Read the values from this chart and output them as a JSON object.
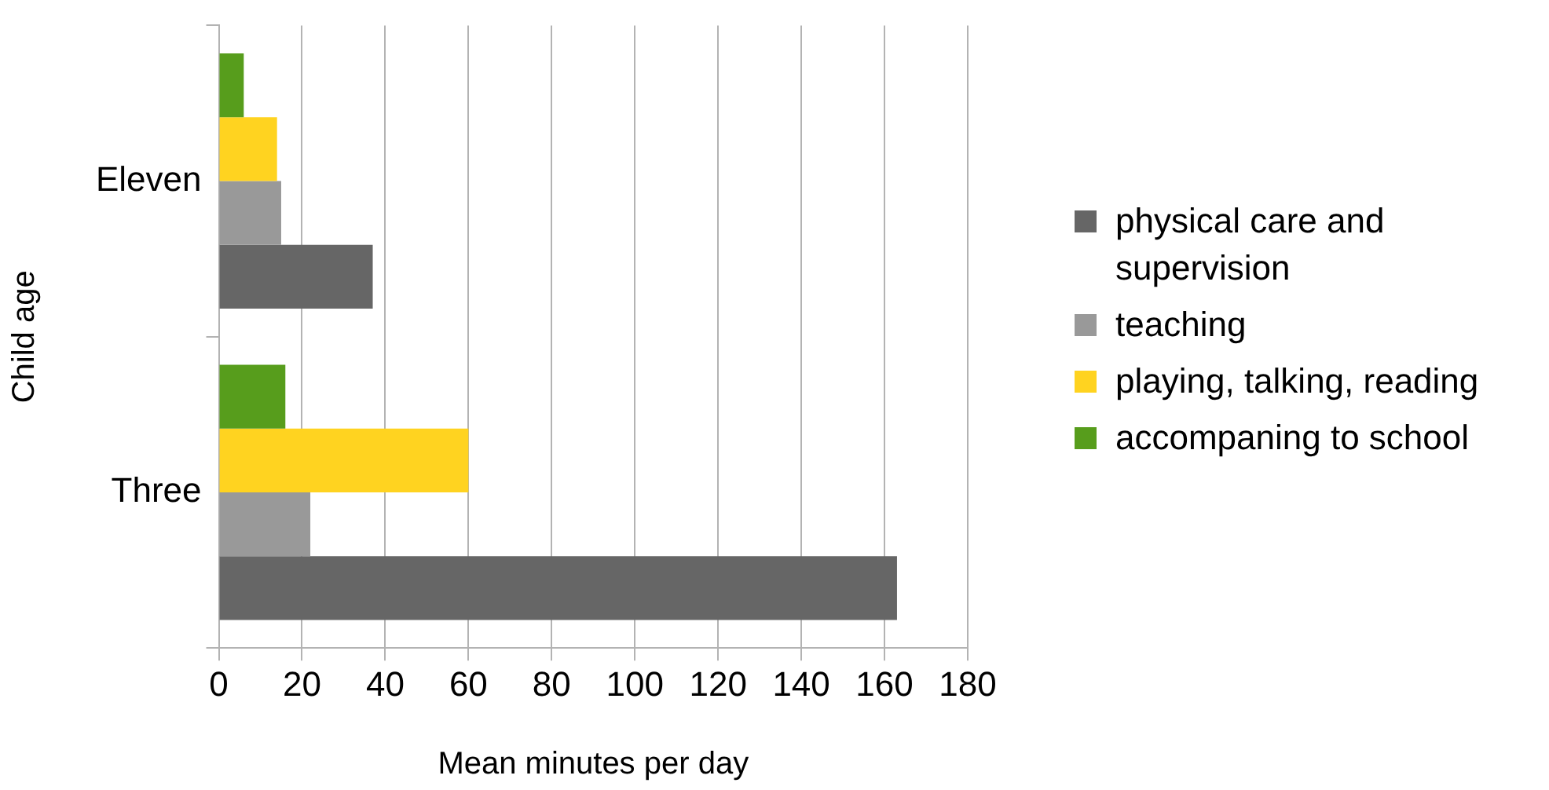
{
  "chart_data": {
    "type": "bar",
    "orientation": "horizontal",
    "xlabel": "Mean minutes per day",
    "ylabel": "Child age",
    "categories": [
      "Eleven",
      "Three"
    ],
    "series": [
      {
        "name": "physical care and supervision",
        "color": "#666666",
        "values": [
          37,
          163
        ]
      },
      {
        "name": "teaching",
        "color": "#999999",
        "values": [
          15,
          22
        ]
      },
      {
        "name": "playing, talking, reading",
        "color": "#ffd320",
        "values": [
          14,
          60
        ]
      },
      {
        "name": "accompaning to school",
        "color": "#579d1c",
        "values": [
          6,
          16
        ]
      }
    ],
    "xlim": [
      0,
      180
    ],
    "xticks": [
      0,
      20,
      40,
      60,
      80,
      100,
      120,
      140,
      160,
      180
    ],
    "grid": "x",
    "legend": "right"
  }
}
